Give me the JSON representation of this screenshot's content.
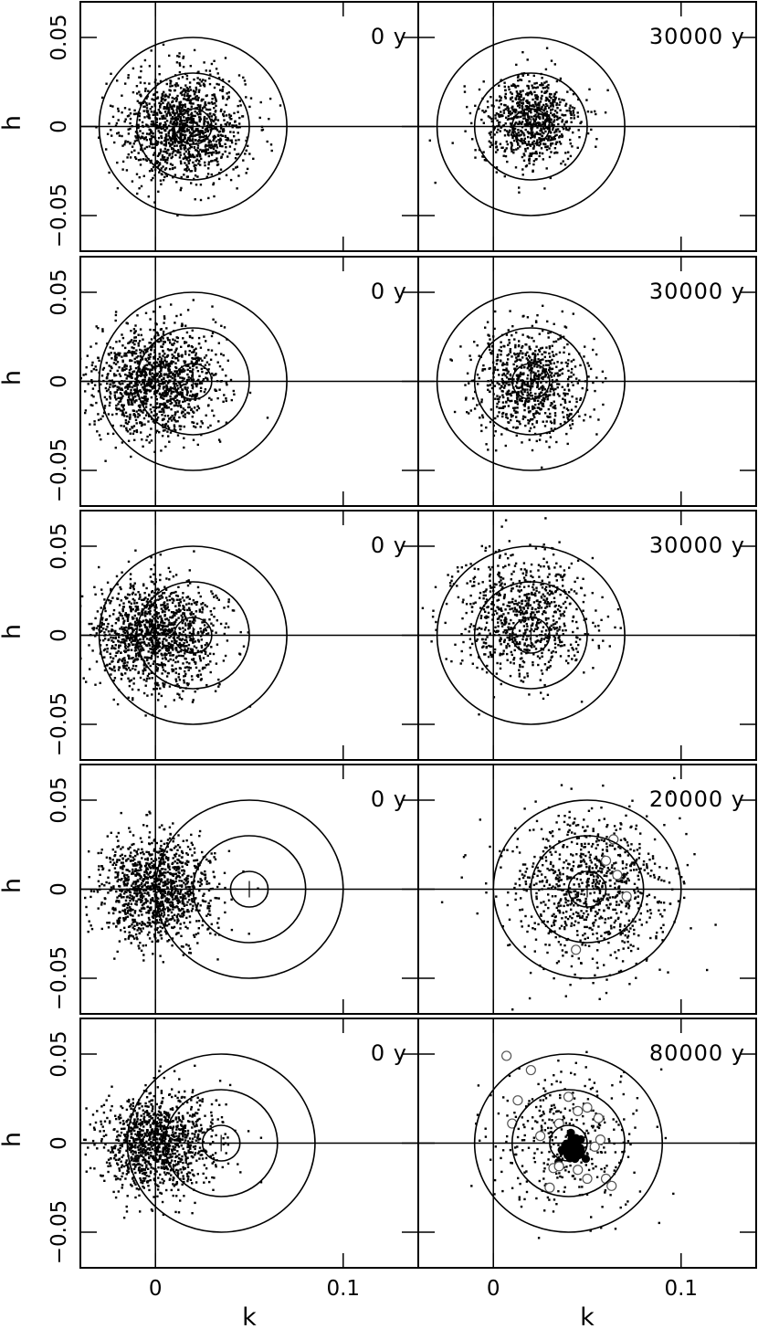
{
  "chart_data": {
    "type": "scatter",
    "layout": "5 rows x 2 columns of panels, shared axes",
    "xlabel": "k",
    "ylabel": "h",
    "xlim": [
      -0.04,
      0.14
    ],
    "ylim": [
      -0.07,
      0.07
    ],
    "x_ticks": [
      0,
      0.1
    ],
    "x_tick_labels": [
      "0",
      "0.1"
    ],
    "y_ticks": [
      -0.05,
      0,
      0.05
    ],
    "y_tick_labels": [
      "−0.05",
      "0",
      "0.05"
    ],
    "grid": false,
    "legend": "none",
    "reference_lines": {
      "h": 0,
      "k": 0
    },
    "panels": [
      {
        "row": 1,
        "col": 1,
        "label": "0 y",
        "center_k": 0.02,
        "circle_radii": [
          0.01,
          0.03,
          0.05
        ],
        "points": {
          "count": 1300,
          "mean_k": 0.015,
          "mean_h": 0.0,
          "sd": 0.016
        }
      },
      {
        "row": 1,
        "col": 2,
        "label": "30000 y",
        "center_k": 0.02,
        "circle_radii": [
          0.01,
          0.03,
          0.05
        ],
        "points": {
          "count": 800,
          "mean_k": 0.02,
          "mean_h": 0.003,
          "sd": 0.013
        }
      },
      {
        "row": 2,
        "col": 1,
        "label": "0 y",
        "center_k": 0.02,
        "circle_radii": [
          0.01,
          0.03,
          0.05
        ],
        "points": {
          "count": 1300,
          "mean_k": 0.0,
          "mean_h": 0.0,
          "sd": 0.016
        }
      },
      {
        "row": 2,
        "col": 2,
        "label": "30000 y",
        "center_k": 0.02,
        "circle_radii": [
          0.01,
          0.03,
          0.05
        ],
        "points": {
          "count": 800,
          "mean_k": 0.02,
          "mean_h": 0.0,
          "sd": 0.015
        }
      },
      {
        "row": 3,
        "col": 1,
        "label": "0 y",
        "center_k": 0.02,
        "circle_radii": [
          0.01,
          0.03,
          0.05
        ],
        "points": {
          "count": 1300,
          "mean_k": 0.0,
          "mean_h": 0.0,
          "sd": 0.016
        }
      },
      {
        "row": 3,
        "col": 2,
        "label": "30000 y",
        "center_k": 0.02,
        "circle_radii": [
          0.01,
          0.03,
          0.05
        ],
        "points": {
          "count": 800,
          "mean_k": 0.015,
          "mean_h": 0.01,
          "sd": 0.018
        }
      },
      {
        "row": 4,
        "col": 1,
        "label": "0 y",
        "center_k": 0.05,
        "circle_radii": [
          0.01,
          0.03,
          0.05
        ],
        "points": {
          "count": 1200,
          "mean_k": 0.0,
          "mean_h": 0.0,
          "sd": 0.015
        }
      },
      {
        "row": 4,
        "col": 2,
        "label": "20000 y",
        "center_k": 0.05,
        "circle_radii": [
          0.01,
          0.03,
          0.05
        ],
        "points": {
          "count": 900,
          "mean_k": 0.05,
          "mean_h": 0.0,
          "sd": 0.022
        },
        "open_circles": [
          [
            0.064,
            0.028
          ],
          [
            0.066,
            0.008
          ],
          [
            0.071,
            -0.004
          ],
          [
            0.044,
            -0.034
          ],
          [
            0.06,
            0.016
          ]
        ]
      },
      {
        "row": 5,
        "col": 1,
        "label": "0 y",
        "center_k": 0.035,
        "circle_radii": [
          0.01,
          0.03,
          0.05
        ],
        "points": {
          "count": 1200,
          "mean_k": 0.0,
          "mean_h": 0.0,
          "sd": 0.015
        }
      },
      {
        "row": 5,
        "col": 2,
        "label": "80000 y",
        "center_k": 0.04,
        "circle_radii": [
          0.01,
          0.03,
          0.05
        ],
        "points": {
          "count": 350,
          "mean_k": 0.038,
          "mean_h": 0.0,
          "sd": 0.02
        },
        "filled_cluster": {
          "k": 0.042,
          "h": -0.003,
          "count": 40
        },
        "open_circles": [
          [
            0.007,
            0.049
          ],
          [
            0.02,
            0.041
          ],
          [
            0.013,
            0.024
          ],
          [
            0.04,
            0.026
          ],
          [
            0.045,
            0.018
          ],
          [
            0.05,
            0.02
          ],
          [
            0.056,
            0.014
          ],
          [
            0.01,
            0.011
          ],
          [
            0.035,
            0.011
          ],
          [
            0.025,
            0.004
          ],
          [
            0.054,
            -0.002
          ],
          [
            0.057,
            0.002
          ],
          [
            0.032,
            -0.014
          ],
          [
            0.035,
            -0.013
          ],
          [
            0.045,
            -0.015
          ],
          [
            0.05,
            -0.02
          ],
          [
            0.06,
            -0.02
          ],
          [
            0.063,
            -0.024
          ],
          [
            0.03,
            -0.025
          ]
        ]
      }
    ]
  }
}
